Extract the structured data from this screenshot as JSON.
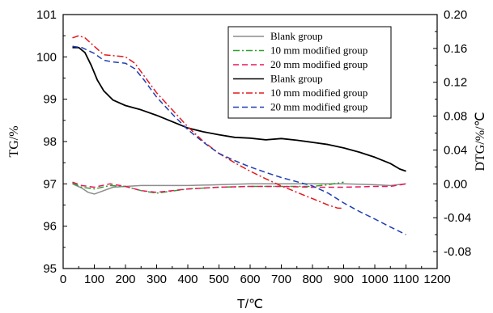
{
  "chart_data": {
    "type": "line",
    "title": "",
    "xlabel": "T/℃",
    "ylabel_left": "TG/%",
    "ylabel_right": "DTG/%/℃",
    "xlim": [
      0,
      1200
    ],
    "ylim_left": [
      95,
      101
    ],
    "ylim_right": [
      -0.1,
      0.2
    ],
    "x_ticks": [
      "0",
      "100",
      "200",
      "300",
      "400",
      "500",
      "600",
      "700",
      "800",
      "900",
      "1000",
      "1100",
      "1200"
    ],
    "y_left_ticks": [
      "95",
      "96",
      "97",
      "98",
      "99",
      "100",
      "101"
    ],
    "y_right_ticks": [
      "-0.08",
      "-0.04",
      "0.00",
      "0.04",
      "0.08",
      "0.12",
      "0.16",
      "0.20"
    ],
    "legend_position": "top-right",
    "legend": [
      "Blank group",
      "10 mm modified group",
      "20 mm modified group",
      "Blank group",
      "10 mm modified group",
      "20 mm modified group"
    ],
    "series": [
      {
        "name": "Blank group",
        "axis": "right",
        "color": "#8c8c8c",
        "dash": "solid",
        "x": [
          30,
          60,
          80,
          100,
          130,
          160,
          200,
          250,
          300,
          400,
          500,
          600,
          700,
          800,
          900,
          1000,
          1050,
          1100
        ],
        "y": [
          0.0,
          -0.005,
          -0.01,
          -0.012,
          -0.008,
          -0.004,
          -0.003,
          -0.002,
          -0.002,
          -0.002,
          -0.001,
          0.0,
          0.0,
          0.0,
          0.0,
          -0.001,
          -0.002,
          0.0
        ]
      },
      {
        "name": "10 mm modified group",
        "axis": "right",
        "color": "#2ca02c",
        "dash": "dashdot",
        "x": [
          30,
          60,
          100,
          150,
          200,
          250,
          300,
          400,
          500,
          600,
          700,
          800,
          850,
          900
        ],
        "y": [
          0.001,
          -0.004,
          -0.006,
          -0.002,
          -0.003,
          -0.008,
          -0.011,
          -0.006,
          -0.004,
          -0.003,
          -0.003,
          -0.003,
          -0.001,
          0.002
        ]
      },
      {
        "name": "20 mm modified group",
        "axis": "right",
        "color": "#e8175d",
        "dash": "dash",
        "x": [
          30,
          60,
          100,
          150,
          200,
          250,
          300,
          400,
          500,
          600,
          700,
          800,
          900,
          1000,
          1050,
          1100
        ],
        "y": [
          0.002,
          -0.002,
          -0.004,
          0.0,
          -0.003,
          -0.008,
          -0.01,
          -0.006,
          -0.004,
          -0.003,
          -0.003,
          -0.004,
          -0.004,
          -0.003,
          -0.003,
          0.0
        ]
      },
      {
        "name": "Blank group",
        "axis": "left",
        "color": "#000000",
        "dash": "solid",
        "x": [
          30,
          50,
          70,
          90,
          110,
          130,
          160,
          200,
          250,
          300,
          350,
          400,
          450,
          500,
          550,
          600,
          650,
          700,
          750,
          800,
          850,
          900,
          950,
          1000,
          1050,
          1080,
          1100
        ],
        "y": [
          100.22,
          100.22,
          100.1,
          99.8,
          99.45,
          99.2,
          98.98,
          98.85,
          98.75,
          98.62,
          98.47,
          98.32,
          98.23,
          98.16,
          98.1,
          98.08,
          98.04,
          98.07,
          98.03,
          97.98,
          97.93,
          97.85,
          97.75,
          97.63,
          97.48,
          97.35,
          97.3
        ]
      },
      {
        "name": "10 mm modified group",
        "axis": "left",
        "color": "#e31a1c",
        "dash": "dashdot",
        "x": [
          30,
          50,
          70,
          100,
          130,
          160,
          200,
          230,
          260,
          300,
          350,
          400,
          450,
          500,
          550,
          600,
          650,
          700,
          750,
          800,
          850,
          880,
          900
        ],
        "y": [
          100.45,
          100.5,
          100.45,
          100.25,
          100.05,
          100.03,
          100.0,
          99.85,
          99.55,
          99.15,
          98.75,
          98.35,
          98.0,
          97.72,
          97.5,
          97.3,
          97.12,
          96.95,
          96.8,
          96.65,
          96.5,
          96.43,
          96.42
        ]
      },
      {
        "name": "20 mm modified group",
        "axis": "left",
        "color": "#1f3fb4",
        "dash": "dash",
        "x": [
          30,
          60,
          100,
          130,
          160,
          200,
          230,
          260,
          300,
          350,
          400,
          450,
          500,
          550,
          600,
          650,
          700,
          750,
          800,
          850,
          900,
          950,
          1000,
          1050,
          1100
        ],
        "y": [
          100.25,
          100.22,
          100.08,
          99.92,
          99.88,
          99.85,
          99.72,
          99.45,
          99.05,
          98.65,
          98.28,
          97.98,
          97.72,
          97.55,
          97.4,
          97.27,
          97.15,
          97.05,
          96.95,
          96.78,
          96.55,
          96.35,
          96.17,
          95.98,
          95.8
        ]
      }
    ]
  }
}
